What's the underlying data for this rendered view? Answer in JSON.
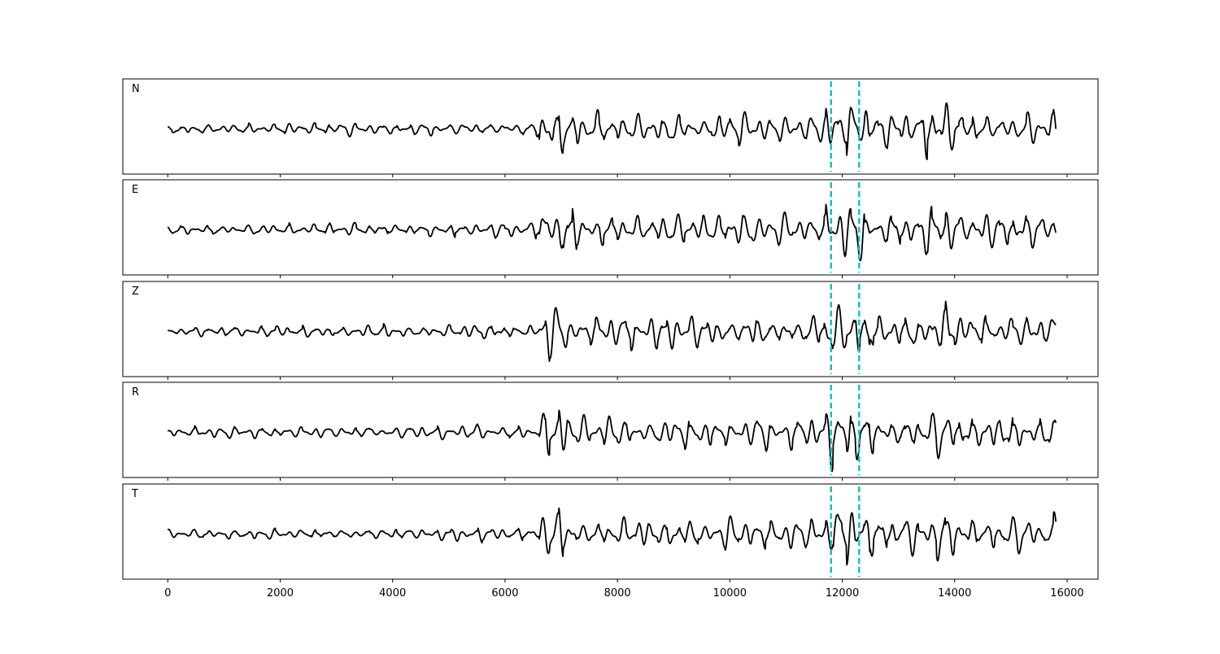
{
  "chart_data": {
    "type": "line",
    "layout": "stacked-panels",
    "panels": [
      {
        "label": "N",
        "seed": 11
      },
      {
        "label": "E",
        "seed": 23
      },
      {
        "label": "Z",
        "seed": 37
      },
      {
        "label": "R",
        "seed": 41
      },
      {
        "label": "T",
        "seed": 53
      }
    ],
    "x_range": [
      -800,
      16550
    ],
    "x_ticks": [
      0,
      2000,
      4000,
      6000,
      8000,
      10000,
      12000,
      14000,
      16000
    ],
    "trace_x_range": [
      0,
      15800
    ],
    "markers_x": [
      11800,
      12300
    ],
    "colors": {
      "trace": "#000000",
      "marker": "#17bfbf",
      "frame": "#000000"
    },
    "grid": false,
    "shared_x_axis": true
  }
}
